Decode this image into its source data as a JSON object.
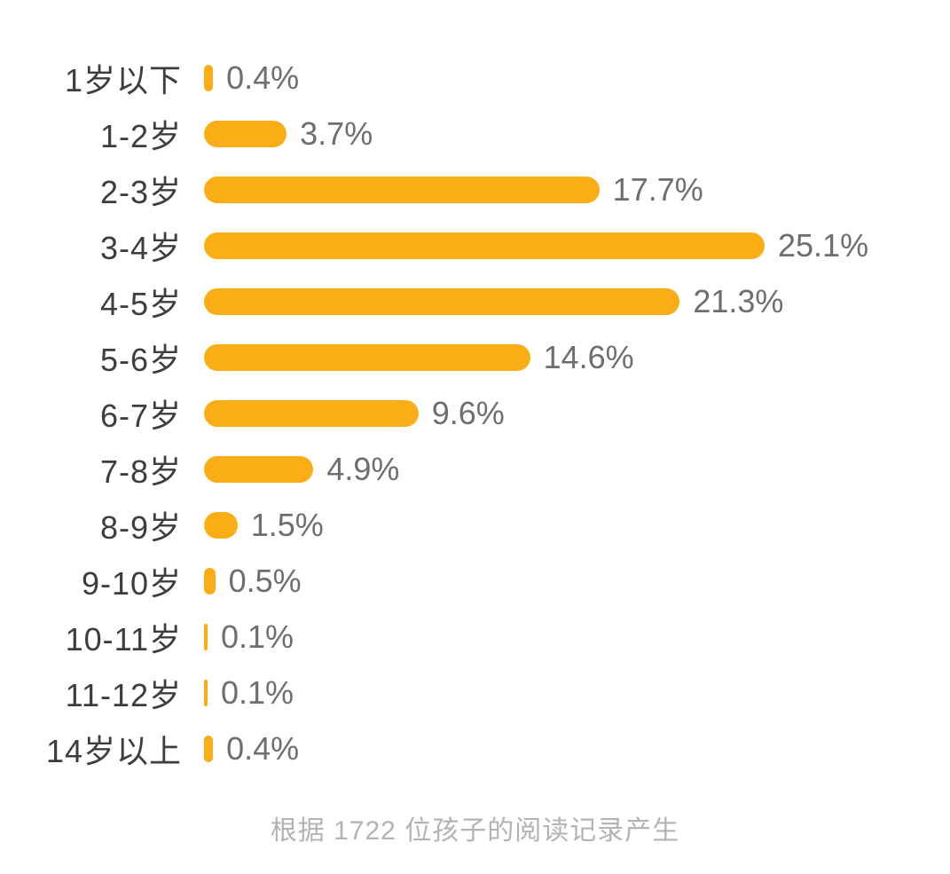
{
  "chart_data": {
    "type": "bar",
    "orientation": "horizontal",
    "title": "",
    "xlabel": "",
    "ylabel": "",
    "unit": "%",
    "categories": [
      "1岁以下",
      "1-2岁",
      "2-3岁",
      "3-4岁",
      "4-5岁",
      "5-6岁",
      "6-7岁",
      "7-8岁",
      "8-9岁",
      "9-10岁",
      "10-11岁",
      "11-12岁",
      "14岁以上"
    ],
    "values": [
      0.4,
      3.7,
      17.7,
      25.1,
      21.3,
      14.6,
      9.6,
      4.9,
      1.5,
      0.5,
      0.1,
      0.1,
      0.4
    ],
    "value_labels": [
      "0.4%",
      "3.7%",
      "17.7%",
      "25.1%",
      "21.3%",
      "14.6%",
      "9.6%",
      "4.9%",
      "1.5%",
      "0.5%",
      "0.1%",
      "0.1%",
      "0.4%"
    ],
    "xlim": [
      0,
      25.1
    ],
    "grid": false,
    "legend": false,
    "bar_color": "#FAAD14",
    "label_color": "#3d3d3d",
    "value_color": "#6e6e6e",
    "footer": "根据 1722 位孩子的阅读记录产生"
  }
}
